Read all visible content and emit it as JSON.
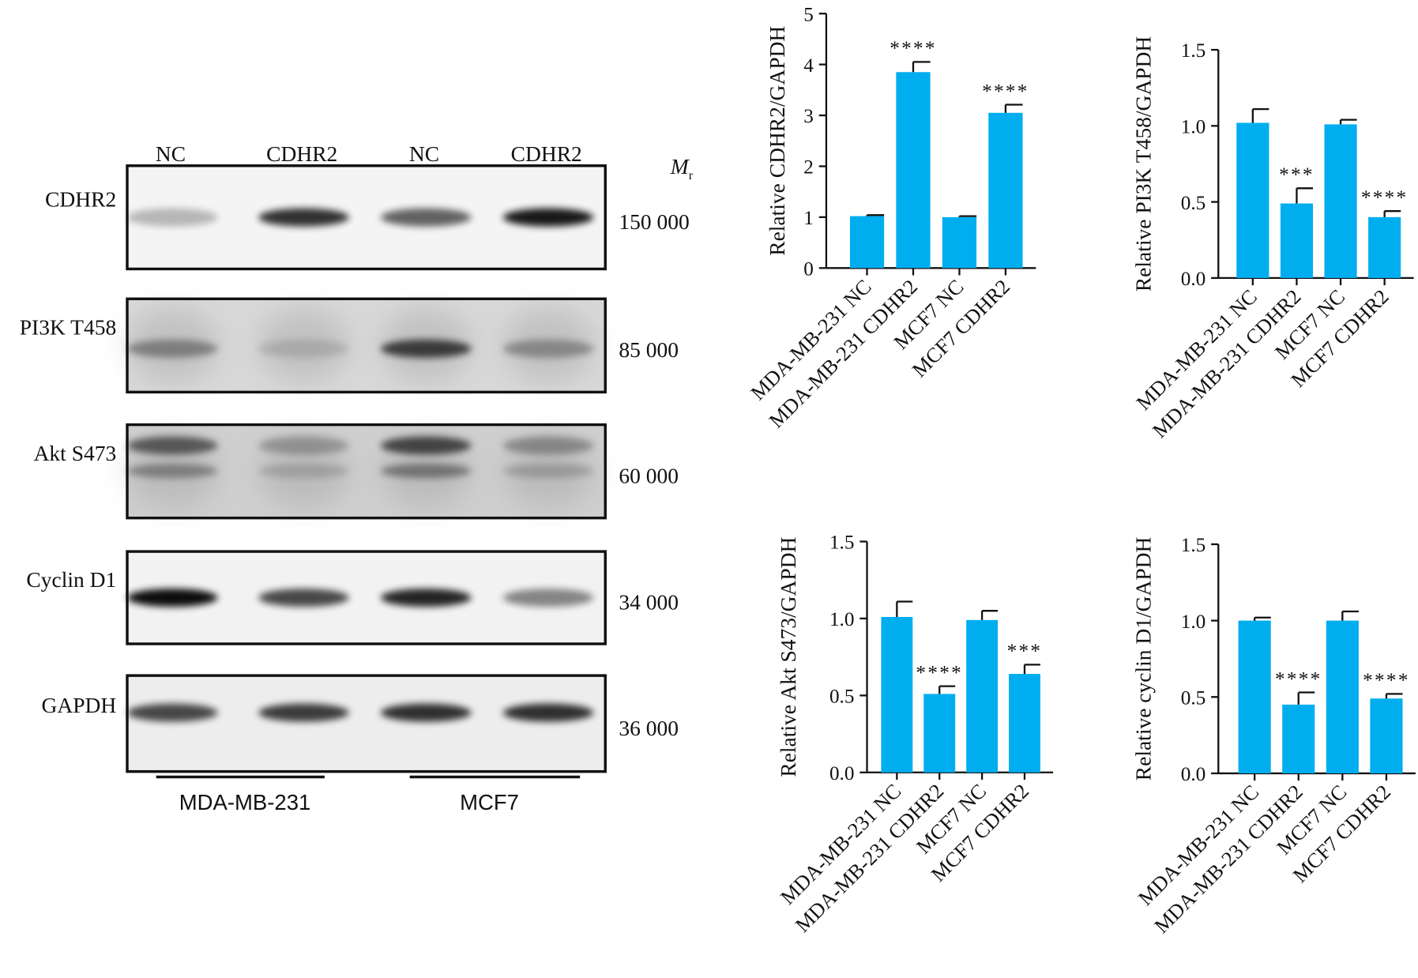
{
  "blot": {
    "lanes": [
      "NC",
      "CDHR2",
      "NC",
      "CDHR2"
    ],
    "mr_label": "M",
    "mr_subscript": "r",
    "rows": [
      {
        "protein": "CDHR2",
        "mr": "150 000"
      },
      {
        "protein": "PI3K T458",
        "mr": "85 000"
      },
      {
        "protein": "Akt S473",
        "mr": "60 000"
      },
      {
        "protein": "Cyclin D1",
        "mr": "34 000"
      },
      {
        "protein": "GAPDH",
        "mr": "36 000"
      }
    ],
    "groups": [
      "MDA-MB-231",
      "MCF7"
    ]
  },
  "chart_data": [
    {
      "type": "bar",
      "ylabel": "Relative CDHR2/GAPDH",
      "categories": [
        "MDA-MB-231 NC",
        "MDA-MB-231 CDHR2",
        "MCF7 NC",
        "MCF7 CDHR2"
      ],
      "values": [
        1.02,
        3.85,
        1.0,
        3.05
      ],
      "errors": [
        0.02,
        0.2,
        0.02,
        0.16
      ],
      "significance": [
        null,
        "****",
        null,
        "****"
      ],
      "color": "#00aeef",
      "ylim": [
        0,
        5
      ],
      "yticks": [
        0,
        1,
        2,
        3,
        4,
        5
      ]
    },
    {
      "type": "bar",
      "ylabel": "Relative PI3K T458/GAPDH",
      "categories": [
        "MDA-MB-231 NC",
        "MDA-MB-231 CDHR2",
        "MCF7 NC",
        "MCF7 CDHR2"
      ],
      "values": [
        1.02,
        0.49,
        1.01,
        0.4
      ],
      "errors": [
        0.09,
        0.1,
        0.03,
        0.04
      ],
      "significance": [
        null,
        "***",
        null,
        "****"
      ],
      "color": "#00aeef",
      "ylim": [
        0,
        1.5
      ],
      "yticks": [
        {
          "value": 0,
          "label": "0.0"
        },
        0.5,
        {
          "value": 1,
          "label": "1.0"
        },
        1.5
      ]
    },
    {
      "type": "bar",
      "ylabel": "Relative Akt S473/GAPDH",
      "categories": [
        "MDA-MB-231 NC",
        "MDA-MB-231 CDHR2",
        "MCF7 NC",
        "MCF7 CDHR2"
      ],
      "values": [
        1.01,
        0.51,
        0.99,
        0.64
      ],
      "errors": [
        0.1,
        0.05,
        0.06,
        0.06
      ],
      "significance": [
        null,
        "****",
        null,
        "***"
      ],
      "color": "#00aeef",
      "ylim": [
        0,
        1.5
      ],
      "yticks": [
        {
          "value": 0,
          "label": "0.0"
        },
        0.5,
        {
          "value": 1,
          "label": "1.0"
        },
        1.5
      ]
    },
    {
      "type": "bar",
      "ylabel": "Relative cyclin D1/GAPDH",
      "categories": [
        "MDA-MB-231 NC",
        "MDA-MB-231 CDHR2",
        "MCF7 NC",
        "MCF7 CDHR2"
      ],
      "values": [
        1.0,
        0.45,
        1.0,
        0.49
      ],
      "errors": [
        0.02,
        0.08,
        0.06,
        0.03
      ],
      "significance": [
        null,
        "****",
        null,
        "****"
      ],
      "color": "#00aeef",
      "ylim": [
        0,
        1.5
      ],
      "yticks": [
        {
          "value": 0,
          "label": "0.0"
        },
        0.5,
        {
          "value": 1,
          "label": "1.0"
        },
        1.5
      ]
    }
  ]
}
